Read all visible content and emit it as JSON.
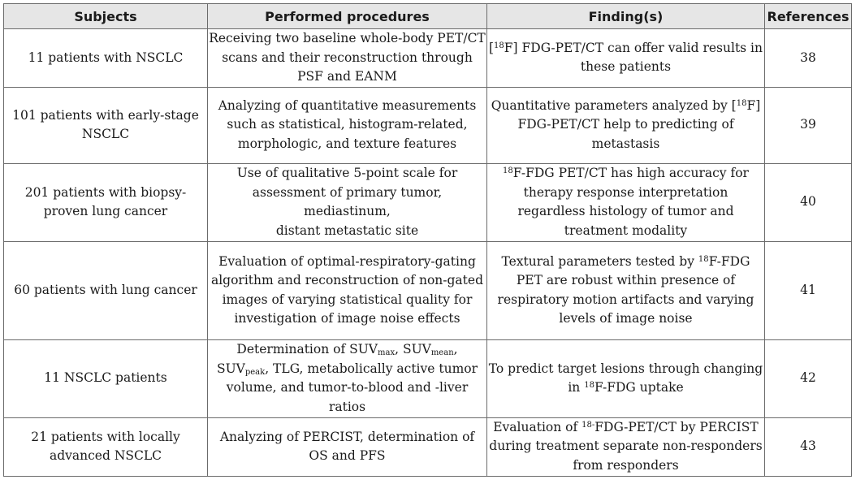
{
  "headers": {
    "subjects": "Subjects",
    "procedures": "Performed procedures",
    "findings": "Finding(s)",
    "references": "References"
  },
  "rows": [
    {
      "subject": "11 patients with NSCLC",
      "procedure": "Receiving two baseline whole-body PET/CT scans and their reconstruction through PSF and EANM",
      "finding_pre": "[",
      "finding_sup": "18",
      "finding_post": "F] FDG-PET/CT can offer valid results in these patients",
      "reference": "38"
    },
    {
      "subject": "101 patients with early-stage NSCLC",
      "procedure": "Analyzing of quantitative measurements such as statistical, histogram-related, morphologic, and texture features",
      "finding_pre": "Quantitative parameters analyzed by [",
      "finding_sup": "18",
      "finding_post": "F] FDG-PET/CT help to predicting of metastasis",
      "reference": "39"
    },
    {
      "subject": "201 patients with biopsy-proven lung cancer",
      "procedure_line1": "Use of qualitative 5-point scale for assessment of primary tumor, mediastinum,",
      "procedure_line2": "distant metastatic site",
      "finding_sup": "18",
      "finding_post": "F-FDG PET/CT has high accuracy for therapy response interpretation regardless histology of tumor and treatment modality",
      "reference": "40"
    },
    {
      "subject": "60 patients with lung cancer",
      "procedure": "Evaluation of optimal-respiratory-gating algorithm and reconstruction of non-gated images of varying statistical quality for investigation of image noise effects",
      "finding_pre": "Textural parameters tested by ",
      "finding_sup": "18",
      "finding_post": "F-FDG PET are robust within presence of respiratory motion artifacts and varying levels of image noise",
      "reference": "41"
    },
    {
      "subject": "11 NSCLC patients",
      "procedure_t1": "Determination of SUV",
      "procedure_s1": "max",
      "procedure_t2": ", SUV",
      "procedure_s2": "mean",
      "procedure_t3": ", SUV",
      "procedure_s3": "peak",
      "procedure_t4": ", TLG, metabolically active tumor volume, and tumor-to-blood and -liver ratios",
      "finding_line1": "To predict target lesions through changing",
      "finding_line2_pre": "in ",
      "finding_sup": "18",
      "finding_post": "F-FDG uptake",
      "reference": "42"
    },
    {
      "subject": "21 patients with locally advanced NSCLC",
      "procedure": "Analyzing of PERCIST, determination of OS and PFS",
      "finding_pre": "Evaluation of ",
      "finding_sup": "18-",
      "finding_post": "FDG-PET/CT by PERCIST during treatment separate non-responders from responders",
      "reference": "43"
    }
  ]
}
